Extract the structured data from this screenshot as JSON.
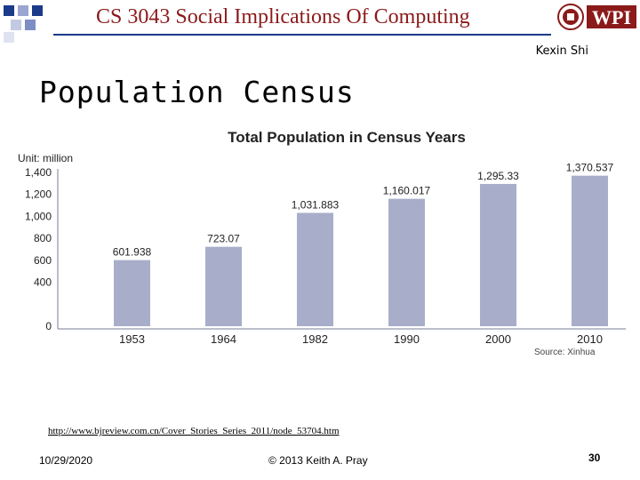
{
  "header": {
    "course_title": "CS 3043 Social Implications Of Computing",
    "logo_text": "WPI",
    "author": "Kexin Shi"
  },
  "slide": {
    "title": "Population Census",
    "url": "http://www.bjreview.com.cn/Cover_Stories_Series_2011/node_53704.htm"
  },
  "footer": {
    "date": "10/29/2020",
    "copyright": "© 2013 Keith A. Pray",
    "page": "30"
  },
  "colors": {
    "header_red": "#8b1a1a",
    "rule_blue": "#1a3a8a",
    "bar": "#a8aec9",
    "axis": "#7a7f95"
  },
  "chart_data": {
    "type": "bar",
    "title": "Total Population in Census Years",
    "unit_label": "Unit: million",
    "source": "Source: Xinhua",
    "categories": [
      "1953",
      "1964",
      "1982",
      "1990",
      "2000",
      "2010"
    ],
    "values": [
      601.938,
      723.07,
      1031.883,
      1160.017,
      1295.33,
      1370.537
    ],
    "value_labels": [
      "601.938",
      "723.07",
      "1,031.883",
      "1,160.017",
      "1,295.33",
      "1,370.537"
    ],
    "y_ticks": [
      "0",
      "400",
      "600",
      "800",
      "1,000",
      "1,200",
      "1,400"
    ],
    "y_tick_values": [
      0,
      400,
      600,
      800,
      1000,
      1200,
      1400
    ],
    "ylim": [
      0,
      1400
    ],
    "grid": false
  }
}
